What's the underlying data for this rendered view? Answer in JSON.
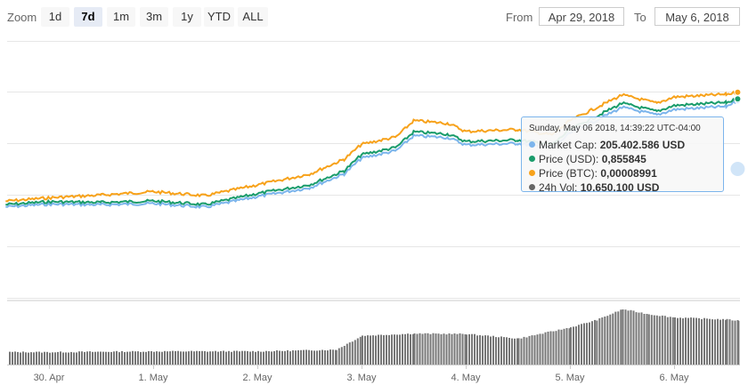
{
  "toolbar": {
    "zoom_label": "Zoom",
    "buttons": [
      "1d",
      "7d",
      "1m",
      "3m",
      "1y",
      "YTD",
      "ALL"
    ],
    "active_button": "7d",
    "from_label": "From",
    "from_value": "Apr 29, 2018",
    "to_label": "To",
    "to_value": "May 6, 2018"
  },
  "tooltip": {
    "header": "Sunday, May 06 2018, 14:39:22 UTC-04:00",
    "rows": [
      {
        "label": "Market Cap",
        "value": "205.402.586 USD",
        "color": "#7cb5ec"
      },
      {
        "label": "Price (USD)",
        "value": "0,855845",
        "color": "#1a9c6b"
      },
      {
        "label": "Price (BTC)",
        "value": "0,00008991",
        "color": "#f7a21b"
      },
      {
        "label": "24h Vol",
        "value": "10.650.100 USD",
        "color": "#666666"
      }
    ]
  },
  "chart_data": {
    "type": "line",
    "x_ticks": [
      "30. Apr",
      "1. May",
      "2. May",
      "3. May",
      "4. May",
      "5. May",
      "6. May"
    ],
    "x_range": [
      "Apr 29, 2018",
      "May 6, 2018"
    ],
    "grid": true,
    "series": [
      {
        "name": "Market Cap",
        "color": "#7cb5ec",
        "x": [
          "Apr 29 14:00",
          "Apr 30 00:00",
          "Apr 30 12:00",
          "May 1 00:00",
          "May 1 12:00",
          "May 2 00:00",
          "May 2 12:00",
          "May 2 20:00",
          "May 3 00:00",
          "May 3 08:00",
          "May 3 12:00",
          "May 3 20:00",
          "May 4 00:00",
          "May 4 12:00",
          "May 4 20:00",
          "May 5 00:00",
          "May 5 12:00",
          "May 5 20:00",
          "May 6 00:00",
          "May 6 12:00",
          "May 6 14:39"
        ],
        "y": [
          170.1,
          171.0,
          170.8,
          171.2,
          170.0,
          173.5,
          176.4,
          181.0,
          186.2,
          188.7,
          193.6,
          193.0,
          190.6,
          191.1,
          189.6,
          194.4,
          203.0,
          200.5,
          202.3,
          203.3,
          205.4
        ]
      },
      {
        "name": "Price (USD)",
        "color": "#1a9c6b",
        "x": [
          "Apr 29 14:00",
          "Apr 30 00:00",
          "Apr 30 12:00",
          "May 1 00:00",
          "May 1 12:00",
          "May 2 00:00",
          "May 2 12:00",
          "May 2 20:00",
          "May 3 00:00",
          "May 3 08:00",
          "May 3 12:00",
          "May 3 20:00",
          "May 4 00:00",
          "May 4 12:00",
          "May 4 20:00",
          "May 5 00:00",
          "May 5 12:00",
          "May 5 20:00",
          "May 6 00:00",
          "May 6 12:00",
          "May 6 14:39"
        ],
        "y": [
          0.712,
          0.716,
          0.715,
          0.717,
          0.712,
          0.727,
          0.739,
          0.758,
          0.78,
          0.79,
          0.811,
          0.808,
          0.798,
          0.8,
          0.794,
          0.814,
          0.85,
          0.839,
          0.847,
          0.851,
          0.856
        ]
      },
      {
        "name": "Price (BTC)",
        "color": "#f7a21b",
        "x": [
          "Apr 29 14:00",
          "Apr 30 00:00",
          "Apr 30 12:00",
          "May 1 00:00",
          "May 1 12:00",
          "May 2 00:00",
          "May 2 12:00",
          "May 2 20:00",
          "May 3 00:00",
          "May 3 08:00",
          "May 3 12:00",
          "May 3 20:00",
          "May 4 00:00",
          "May 4 12:00",
          "May 4 20:00",
          "May 5 00:00",
          "May 5 12:00",
          "May 5 20:00",
          "May 6 00:00",
          "May 6 12:00",
          "May 6 14:39"
        ],
        "y": [
          7.38e-05,
          7.43e-05,
          7.47e-05,
          7.52e-05,
          7.46e-05,
          7.62e-05,
          7.78e-05,
          8e-05,
          8.22e-05,
          8.33e-05,
          8.57e-05,
          8.53e-05,
          8.41e-05,
          8.44e-05,
          8.36e-05,
          8.57e-05,
          8.95e-05,
          8.83e-05,
          8.92e-05,
          8.96e-05,
          8.991e-05
        ]
      },
      {
        "name": "24h Vol",
        "color": "#666666",
        "type": "column",
        "x": [
          "Apr 29",
          "Apr 30",
          "May 1",
          "May 2",
          "May 2 18:00",
          "May 3",
          "May 3 12:00",
          "May 4",
          "May 4 12:00",
          "May 5",
          "May 5 06:00",
          "May 5 12:00",
          "May 5 18:00",
          "May 6",
          "May 6 12:00",
          "May 6 14:39"
        ],
        "y": [
          3.1,
          3.0,
          3.2,
          3.2,
          3.6,
          7.0,
          7.5,
          7.4,
          6.3,
          9.0,
          10.8,
          13.4,
          12.2,
          11.4,
          10.9,
          10.65
        ]
      }
    ]
  }
}
